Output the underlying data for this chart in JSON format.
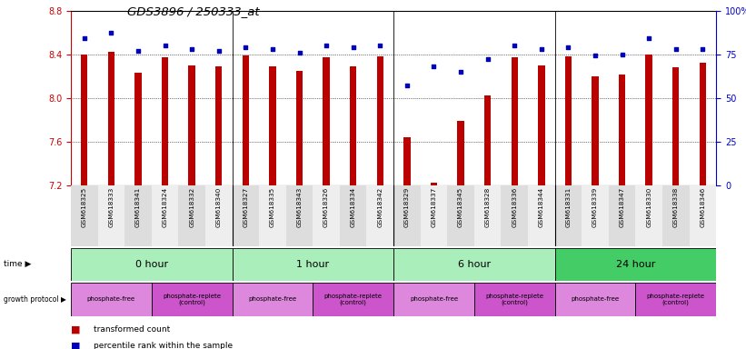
{
  "title": "GDS3896 / 250333_at",
  "samples": [
    "GSM618325",
    "GSM618333",
    "GSM618341",
    "GSM618324",
    "GSM618332",
    "GSM618340",
    "GSM618327",
    "GSM618335",
    "GSM618343",
    "GSM618326",
    "GSM618334",
    "GSM618342",
    "GSM618329",
    "GSM618337",
    "GSM618345",
    "GSM618328",
    "GSM618336",
    "GSM618344",
    "GSM618331",
    "GSM618339",
    "GSM618347",
    "GSM618330",
    "GSM618338",
    "GSM618346"
  ],
  "bar_values": [
    8.4,
    8.42,
    8.23,
    8.37,
    8.3,
    8.29,
    8.39,
    8.29,
    8.25,
    8.37,
    8.29,
    8.38,
    7.64,
    7.22,
    7.79,
    8.02,
    8.37,
    8.3,
    8.38,
    8.2,
    8.21,
    8.4,
    8.28,
    8.32
  ],
  "dot_values": [
    84,
    87,
    77,
    80,
    78,
    77,
    79,
    78,
    76,
    80,
    79,
    80,
    57,
    68,
    65,
    72,
    80,
    78,
    79,
    74,
    75,
    84,
    78,
    78
  ],
  "ylim_left": [
    7.2,
    8.8
  ],
  "ylim_right": [
    0,
    100
  ],
  "yticks_left": [
    7.2,
    7.6,
    8.0,
    8.4,
    8.8
  ],
  "yticks_right": [
    0,
    25,
    50,
    75,
    100
  ],
  "bar_color": "#bb0000",
  "dot_color": "#0000bb",
  "bar_width": 0.25,
  "time_groups": [
    {
      "label": "0 hour",
      "start": 0,
      "end": 6,
      "color": "#aaeebb"
    },
    {
      "label": "1 hour",
      "start": 6,
      "end": 12,
      "color": "#aaeebb"
    },
    {
      "label": "6 hour",
      "start": 12,
      "end": 18,
      "color": "#aaeebb"
    },
    {
      "label": "24 hour",
      "start": 18,
      "end": 24,
      "color": "#44cc66"
    }
  ],
  "protocol_groups": [
    {
      "label": "phosphate-free",
      "start": 0,
      "end": 3,
      "color": "#dd88dd"
    },
    {
      "label": "phosphate-replete\n(control)",
      "start": 3,
      "end": 6,
      "color": "#cc55cc"
    },
    {
      "label": "phosphate-free",
      "start": 6,
      "end": 9,
      "color": "#dd88dd"
    },
    {
      "label": "phosphate-replete\n(control)",
      "start": 9,
      "end": 12,
      "color": "#cc55cc"
    },
    {
      "label": "phosphate-free",
      "start": 12,
      "end": 15,
      "color": "#dd88dd"
    },
    {
      "label": "phosphate-replete\n(control)",
      "start": 15,
      "end": 18,
      "color": "#cc55cc"
    },
    {
      "label": "phosphate-free",
      "start": 18,
      "end": 21,
      "color": "#dd88dd"
    },
    {
      "label": "phosphate-replete\n(control)",
      "start": 21,
      "end": 24,
      "color": "#cc55cc"
    }
  ],
  "legend_bar_label": "transformed count",
  "legend_dot_label": "percentile rank within the sample",
  "bg_color": "#ffffff",
  "tick_color_left": "#cc0000",
  "tick_color_right": "#0000cc",
  "sample_bg_color": "#cccccc",
  "sample_sep_color": "#888888"
}
